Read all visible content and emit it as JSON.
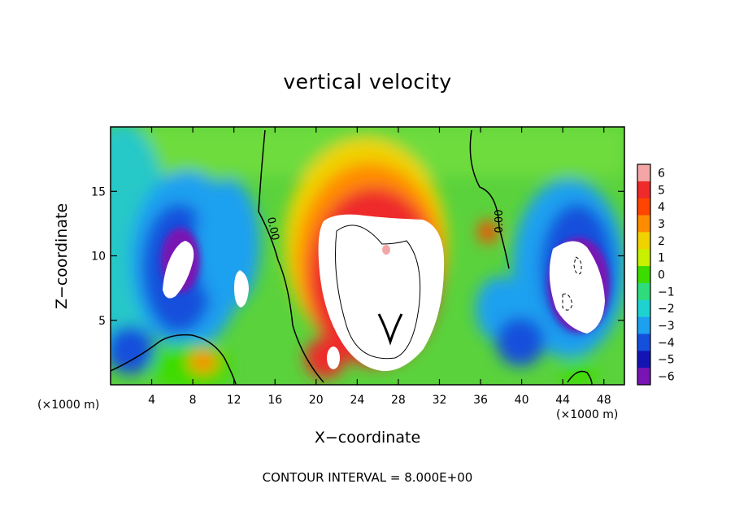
{
  "chart_data": {
    "type": "heatmap",
    "title": "vertical velocity",
    "xlabel": "X−coordinate",
    "ylabel": "Z−coordinate",
    "x_unit_label": "(×1000 m)",
    "footer": "CONTOUR INTERVAL = 8.000E+00",
    "xlim": [
      0,
      50
    ],
    "ylim": [
      0,
      20
    ],
    "x_ticks": [
      4,
      8,
      12,
      16,
      20,
      24,
      28,
      32,
      36,
      40,
      44,
      48
    ],
    "y_ticks": [
      5,
      10,
      15
    ],
    "colorbar": {
      "levels": [
        6,
        5,
        4,
        3,
        2,
        1,
        0,
        -1,
        -2,
        -3,
        -4,
        -5,
        -6
      ],
      "labels": [
        "6",
        "5",
        "4",
        "3",
        "2",
        "1",
        "0",
        "−1",
        "−2",
        "−3",
        "−4",
        "−5",
        "−6"
      ],
      "colors": [
        "#f4a6a6",
        "#ee2a2a",
        "#ff4500",
        "#ff8c00",
        "#f0d200",
        "#c8f000",
        "#3cdc00",
        "#2edc7c",
        "#1ed2d2",
        "#1ea0f0",
        "#1450dc",
        "#1414b4",
        "#7814b4"
      ]
    },
    "contour_labels": [
      "0.00",
      "0.00"
    ]
  }
}
